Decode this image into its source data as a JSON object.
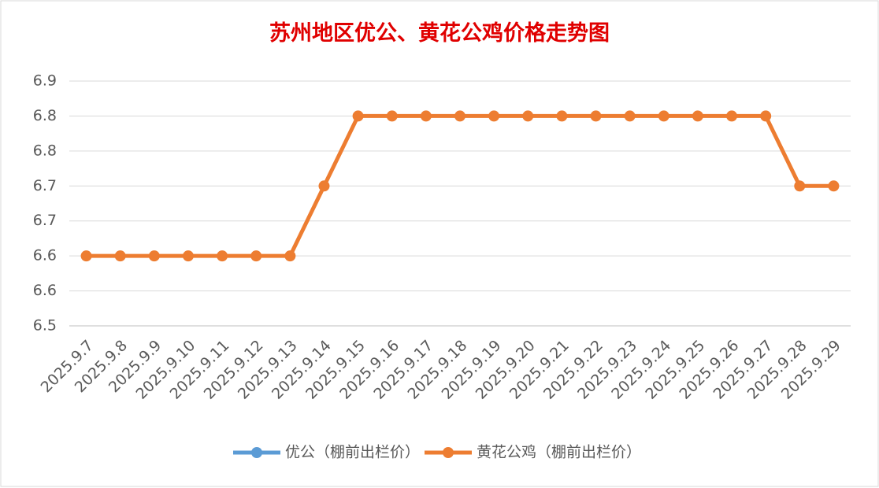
{
  "chart_data": {
    "type": "line",
    "title": "苏州地区优公、黄花公鸡价格走势图",
    "categories": [
      "2025.9.7",
      "2025.9.8",
      "2025.9.9",
      "2025.9.10",
      "2025.9.11",
      "2025.9.12",
      "2025.9.13",
      "2025.9.14",
      "2025.9.15",
      "2025.9.16",
      "2025.9.17",
      "2025.9.18",
      "2025.9.19",
      "2025.9.20",
      "2025.9.21",
      "2025.9.22",
      "2025.9.23",
      "2025.9.24",
      "2025.9.25",
      "2025.9.26",
      "2025.9.27",
      "2025.9.28",
      "2025.9.29"
    ],
    "series": [
      {
        "name": "优公（棚前出栏价）",
        "color": "#5b9bd5",
        "values": [
          null,
          null,
          null,
          null,
          null,
          null,
          null,
          null,
          null,
          null,
          null,
          null,
          null,
          null,
          null,
          null,
          null,
          null,
          null,
          null,
          null,
          null,
          null
        ]
      },
      {
        "name": "黄花公鸡（棚前出栏价）",
        "color": "#ed7d31",
        "values": [
          6.6,
          6.6,
          6.6,
          6.6,
          6.6,
          6.6,
          6.6,
          6.7,
          6.8,
          6.8,
          6.8,
          6.8,
          6.8,
          6.8,
          6.8,
          6.8,
          6.8,
          6.8,
          6.8,
          6.8,
          6.8,
          6.7,
          6.7
        ]
      }
    ],
    "ylim": [
      6.5,
      6.85
    ],
    "yticks": [
      6.5,
      {
        "value": 6.55,
        "label": "6.6"
      },
      6.6,
      {
        "value": 6.65,
        "label": "6.7"
      },
      6.7,
      {
        "value": 6.75,
        "label": "6.8"
      },
      6.8,
      {
        "value": 6.85,
        "label": "6.9"
      }
    ],
    "grid": true,
    "legend": "bottom"
  }
}
